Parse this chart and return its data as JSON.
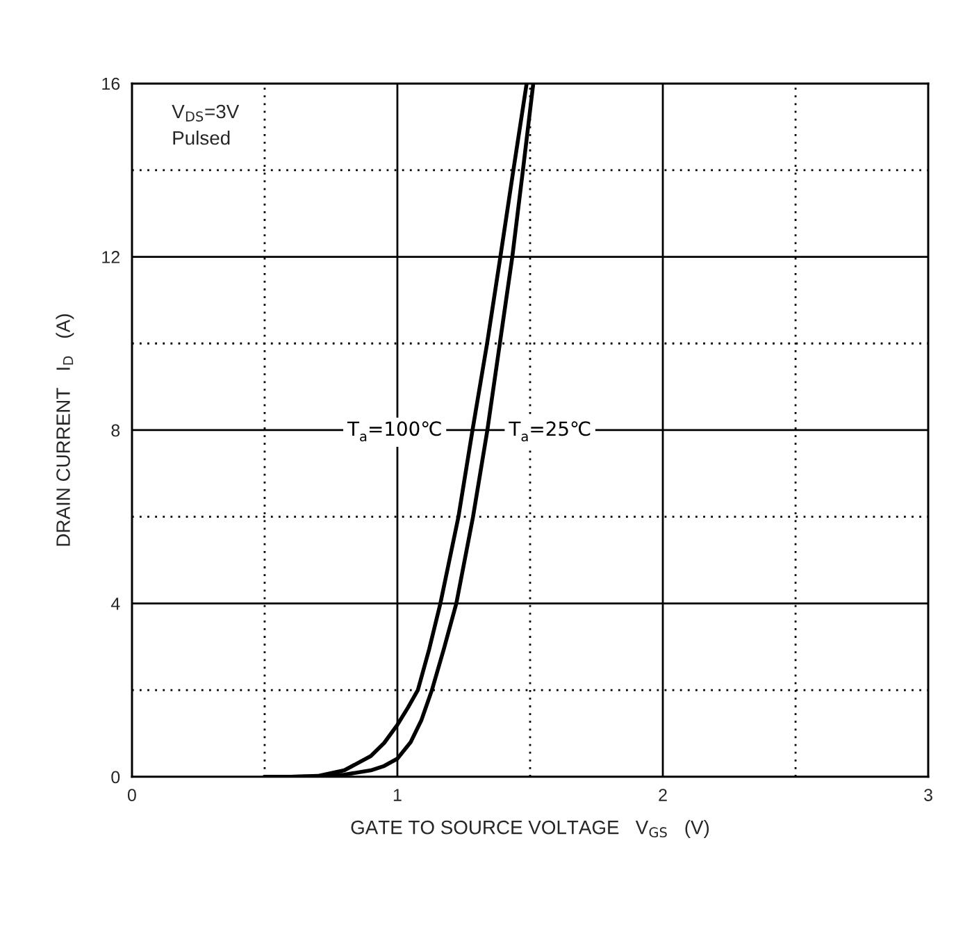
{
  "chart_data": {
    "type": "line",
    "xlabel": "GATE TO SOURCE VOLTAGE   V$_{GS}$   (V)",
    "ylabel": "DRAIN CURRENT   I$_{D}$   (A)",
    "series": [
      {
        "name": "T$_{a}$=100℃",
        "color": "#000000",
        "x": [
          0.5,
          0.6,
          0.7,
          0.8,
          0.9,
          0.95,
          1.0,
          1.04,
          1.077,
          1.12,
          1.162,
          1.23,
          1.283,
          1.338,
          1.388,
          1.437,
          1.487
        ],
        "values": [
          0,
          0,
          0.02,
          0.15,
          0.48,
          0.78,
          1.2,
          1.6,
          2,
          2.95,
          4,
          6,
          8,
          10,
          12,
          14,
          16
        ]
      },
      {
        "name": "T$_{a}$=25℃",
        "color": "#000000",
        "x": [
          0.5,
          0.6,
          0.7,
          0.8,
          0.9,
          0.95,
          1.0,
          1.05,
          1.09,
          1.13,
          1.175,
          1.222,
          1.285,
          1.339,
          1.386,
          1.433,
          1.473,
          1.512
        ],
        "values": [
          0,
          0,
          0.01,
          0.05,
          0.15,
          0.25,
          0.42,
          0.8,
          1.3,
          2,
          2.95,
          4,
          6,
          8,
          10,
          12,
          14,
          16
        ]
      }
    ],
    "xlim": [
      0,
      3
    ],
    "ylim": [
      0,
      16
    ],
    "xticks": [
      0,
      {
        "value": 0.5,
        "label": null
      },
      1,
      {
        "value": 1.5,
        "label": null
      },
      2,
      {
        "value": 2.5,
        "label": null
      },
      3
    ],
    "yticks": [
      0,
      {
        "value": 2,
        "label": null
      },
      4,
      {
        "value": 6,
        "label": null
      },
      8,
      {
        "value": 10,
        "label": null
      },
      12,
      {
        "value": 14,
        "label": null
      },
      16
    ],
    "grid": true,
    "marker": "none",
    "line_style": "solid",
    "annotations": [
      "V$_{DS}$=3V\nPulsed"
    ]
  }
}
